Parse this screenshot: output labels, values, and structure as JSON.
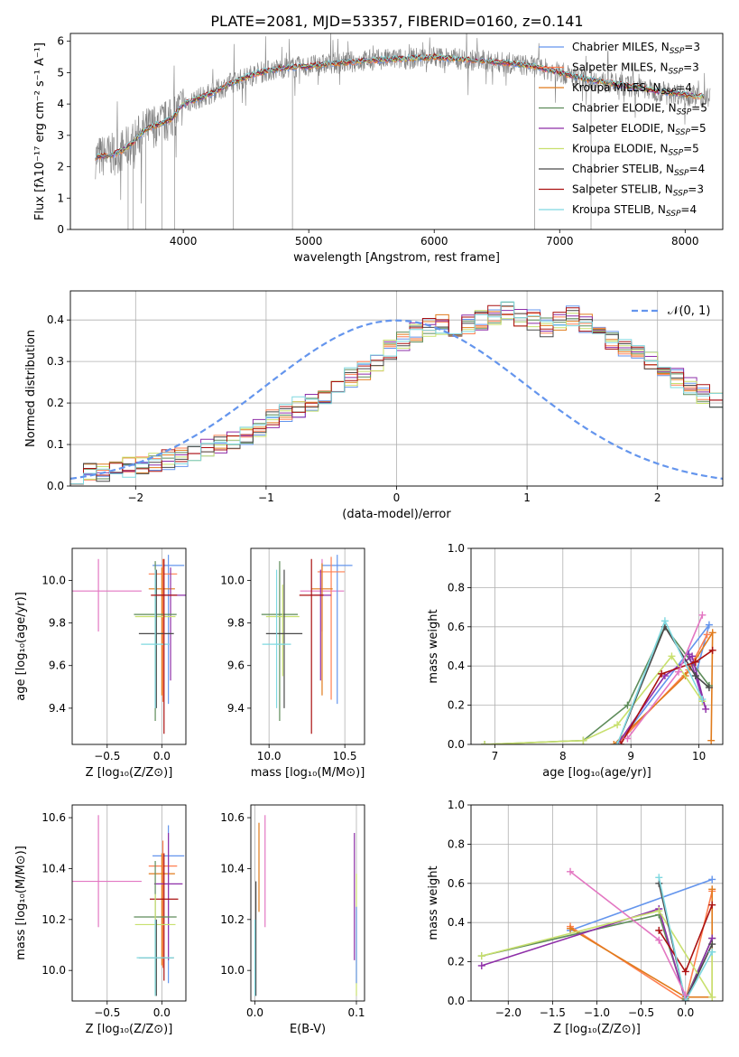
{
  "figure": {
    "title": "PLATE=2081, MJD=53357, FIBERID=0160, z=0.141",
    "colors": {
      "Chabrier MILES": "#6495ed",
      "Salpeter MILES": "#ff7f50",
      "Kroupa MILES": "#e07b1c",
      "Chabrier ELODIE": "#5e8c5a",
      "Salpeter ELODIE": "#8e2fa8",
      "Kroupa ELODIE": "#c8e06e",
      "Chabrier STELIB": "#4a4a4a",
      "Salpeter STELIB": "#aa1111",
      "Kroupa STELIB": "#7fd8e0",
      "pink": "#e377c2",
      "normal": "#6495ed",
      "data": "#808080"
    }
  },
  "chart_data": [
    {
      "id": "spectrum",
      "type": "line",
      "xlabel": "wavelength [Angstrom, rest frame]",
      "ylabel": "Flux [fλ10⁻¹⁷ erg cm⁻² s⁻¹ A⁻¹]",
      "xlim": [
        3100,
        8300
      ],
      "ylim": [
        0,
        6.25
      ],
      "xticks": [
        4000,
        5000,
        6000,
        7000,
        8000
      ],
      "yticks": [
        0,
        1,
        2,
        3,
        4,
        5,
        6
      ],
      "continuum": [
        [
          3300,
          2.3
        ],
        [
          3450,
          2.4
        ],
        [
          3550,
          2.6
        ],
        [
          3700,
          3.2
        ],
        [
          3900,
          3.5
        ],
        [
          4000,
          4.0
        ],
        [
          4200,
          4.3
        ],
        [
          4400,
          4.7
        ],
        [
          4600,
          5.0
        ],
        [
          4800,
          5.15
        ],
        [
          5000,
          5.2
        ],
        [
          5200,
          5.3
        ],
        [
          5500,
          5.4
        ],
        [
          5800,
          5.45
        ],
        [
          6000,
          5.5
        ],
        [
          6300,
          5.4
        ],
        [
          6600,
          5.3
        ],
        [
          6800,
          5.2
        ],
        [
          7000,
          5.0
        ],
        [
          7200,
          4.8
        ],
        [
          7500,
          4.6
        ],
        [
          7800,
          4.4
        ],
        [
          8000,
          4.3
        ],
        [
          8200,
          4.2
        ]
      ],
      "legend": [
        {
          "name": "Chabrier MILES",
          "label": "Chabrier MILES, N",
          "sub": "SSP",
          "suffix": "=3"
        },
        {
          "name": "Salpeter MILES",
          "label": "Salpeter MILES, N",
          "sub": "SSP",
          "suffix": "=3"
        },
        {
          "name": "Kroupa MILES",
          "label": "Kroupa MILES, N",
          "sub": "SSP",
          "suffix": "=4"
        },
        {
          "name": "Chabrier ELODIE",
          "label": "Chabrier ELODIE, N",
          "sub": "SSP",
          "suffix": "=5"
        },
        {
          "name": "Salpeter ELODIE",
          "label": "Salpeter ELODIE, N",
          "sub": "SSP",
          "suffix": "=5"
        },
        {
          "name": "Kroupa ELODIE",
          "label": "Kroupa ELODIE, N",
          "sub": "SSP",
          "suffix": "=5"
        },
        {
          "name": "Chabrier STELIB",
          "label": "Chabrier STELIB, N",
          "sub": "SSP",
          "suffix": "=4"
        },
        {
          "name": "Salpeter STELIB",
          "label": "Salpeter STELIB, N",
          "sub": "SSP",
          "suffix": "=3"
        },
        {
          "name": "Kroupa STELIB",
          "label": "Kroupa STELIB, N",
          "sub": "SSP",
          "suffix": "=4"
        }
      ]
    },
    {
      "id": "residuals",
      "type": "histogram",
      "xlabel": "(data-model)/error",
      "ylabel": "Normed distribution",
      "xlim": [
        -2.5,
        2.5
      ],
      "ylim": [
        0,
        0.47
      ],
      "xticks": [
        -2,
        -1,
        0,
        1,
        2
      ],
      "yticks": [
        0.0,
        0.1,
        0.2,
        0.3,
        0.4
      ],
      "grid": true,
      "bin_width": 0.1,
      "bin_start": -2.5,
      "envelope": [
        0.03,
        0.032,
        0.035,
        0.04,
        0.045,
        0.05,
        0.056,
        0.063,
        0.07,
        0.08,
        0.09,
        0.1,
        0.11,
        0.12,
        0.14,
        0.16,
        0.18,
        0.19,
        0.2,
        0.22,
        0.24,
        0.26,
        0.28,
        0.3,
        0.33,
        0.35,
        0.37,
        0.38,
        0.39,
        0.38,
        0.39,
        0.4,
        0.41,
        0.42,
        0.41,
        0.4,
        0.38,
        0.4,
        0.41,
        0.39,
        0.37,
        0.35,
        0.33,
        0.32,
        0.3,
        0.28,
        0.26,
        0.24,
        0.22,
        0.2,
        0.18,
        0.16,
        0.15,
        0.13,
        0.12,
        0.1,
        0.09,
        0.08,
        0.07,
        0.06,
        0.05,
        0.045,
        0.04,
        0.035,
        0.03,
        0.025,
        0.022,
        0.02,
        0.02,
        0.018,
        0.018,
        0.018,
        0.016,
        0.016,
        0.015,
        0.015,
        0.015,
        0.015,
        0.015,
        0.015
      ],
      "legend": "𝒩(0, 1)"
    },
    {
      "id": "age-vs-Z",
      "type": "errorbar",
      "xlabel": "Z [log₁₀(Z/Z⊙)]",
      "ylabel": "age  [log₁₀(age/yr)]",
      "xlim": [
        -0.82,
        0.22
      ],
      "ylim": [
        9.23,
        10.15
      ],
      "xticks": [
        -0.5,
        0.0
      ],
      "yticks": [
        9.4,
        9.6,
        9.8,
        10.0
      ],
      "points": [
        {
          "s": "pink",
          "x": -0.58,
          "y": 9.95,
          "xe": 0.75,
          "ye": [
            0.19,
            0.15
          ]
        },
        {
          "s": "Chabrier MILES",
          "x": 0.06,
          "y": 10.07,
          "xe": 0.25,
          "ye": [
            0.65,
            0.05
          ]
        },
        {
          "s": "Salpeter MILES",
          "x": 0.01,
          "y": 10.03,
          "xe": 0.22,
          "ye": [
            0.6,
            0.07
          ]
        },
        {
          "s": "Kroupa MILES",
          "x": 0.0,
          "y": 9.96,
          "xe": 0.2,
          "ye": [
            0.5,
            0.1
          ]
        },
        {
          "s": "Salpeter ELODIE",
          "x": 0.08,
          "y": 9.93,
          "xe": 0.25,
          "ye": [
            0.4,
            0.13
          ]
        },
        {
          "s": "Chabrier ELODIE",
          "x": -0.06,
          "y": 9.84,
          "xe": 0.35,
          "ye": [
            0.5,
            0.25
          ]
        },
        {
          "s": "Kroupa ELODIE",
          "x": -0.06,
          "y": 9.83,
          "xe": 0.33,
          "ye": [
            0.28,
            0.15
          ]
        },
        {
          "s": "Chabrier STELIB",
          "x": -0.05,
          "y": 9.75,
          "xe": 0.28,
          "ye": [
            0.35,
            0.3
          ]
        },
        {
          "s": "Kroupa STELIB",
          "x": -0.06,
          "y": 9.7,
          "xe": 0.22,
          "ye": [
            0.3,
            0.35
          ]
        },
        {
          "s": "Salpeter STELIB",
          "x": 0.02,
          "y": 9.93,
          "xe": 0.2,
          "ye": [
            0.65,
            0.17
          ]
        }
      ]
    },
    {
      "id": "age-vs-mass",
      "type": "errorbar",
      "xlabel": "mass [log₁₀(M/M⊙)]",
      "ylabel": "",
      "xlim": [
        9.88,
        10.63
      ],
      "ylim": [
        9.23,
        10.15
      ],
      "xticks": [
        10.0,
        10.5
      ],
      "yticks": [
        9.4,
        9.6,
        9.8,
        10.0
      ],
      "points": [
        {
          "s": "pink",
          "x": 10.35,
          "y": 9.95,
          "xe": 0.25,
          "ye": [
            0.19,
            0.15
          ]
        },
        {
          "s": "Chabrier MILES",
          "x": 10.45,
          "y": 10.07,
          "xe": 0.16,
          "ye": [
            0.65,
            0.05
          ]
        },
        {
          "s": "Salpeter MILES",
          "x": 10.41,
          "y": 10.04,
          "xe": 0.14,
          "ye": [
            0.6,
            0.07
          ]
        },
        {
          "s": "Kroupa MILES",
          "x": 10.35,
          "y": 9.96,
          "xe": 0.1,
          "ye": [
            0.5,
            0.12
          ]
        },
        {
          "s": "Salpeter ELODIE",
          "x": 10.34,
          "y": 9.93,
          "xe": 0.1,
          "ye": [
            0.4,
            0.12
          ]
        },
        {
          "s": "Chabrier ELODIE",
          "x": 10.07,
          "y": 9.84,
          "xe": 0.2,
          "ye": [
            0.5,
            0.25
          ]
        },
        {
          "s": "Kroupa ELODIE",
          "x": 10.09,
          "y": 9.83,
          "xe": 0.18,
          "ye": [
            0.28,
            0.15
          ]
        },
        {
          "s": "Chabrier STELIB",
          "x": 10.1,
          "y": 9.75,
          "xe": 0.2,
          "ye": [
            0.35,
            0.3
          ]
        },
        {
          "s": "Kroupa STELIB",
          "x": 10.05,
          "y": 9.7,
          "xe": 0.15,
          "ye": [
            0.3,
            0.35
          ]
        },
        {
          "s": "Salpeter STELIB",
          "x": 10.28,
          "y": 9.93,
          "xe": 0.12,
          "ye": [
            0.65,
            0.17
          ]
        }
      ]
    },
    {
      "id": "weight-vs-age",
      "type": "line",
      "xlabel": "age  [log₁₀(age/yr)]",
      "ylabel": "mass weight",
      "xlim": [
        6.65,
        10.35
      ],
      "ylim": [
        0,
        1.0
      ],
      "xticks": [
        7,
        8,
        9,
        10
      ],
      "yticks": [
        0.0,
        0.2,
        0.4,
        0.6,
        0.8,
        1.0
      ],
      "grid": true,
      "series": [
        {
          "s": "Chabrier MILES",
          "x": [
            8.8,
            10.15,
            9.95
          ],
          "y": [
            0.0,
            0.61,
            0.35
          ]
        },
        {
          "s": "Salpeter MILES",
          "x": [
            8.8,
            9.85,
            10.12
          ],
          "y": [
            0.0,
            0.38,
            0.56
          ]
        },
        {
          "s": "Kroupa MILES",
          "x": [
            8.75,
            9.8,
            10.2,
            10.18
          ],
          "y": [
            0.0,
            0.35,
            0.57,
            0.02
          ]
        },
        {
          "s": "Chabrier ELODIE",
          "x": [
            6.85,
            8.3,
            8.95,
            9.5,
            10.15
          ],
          "y": [
            0.0,
            0.02,
            0.2,
            0.6,
            0.3
          ]
        },
        {
          "s": "Salpeter ELODIE",
          "x": [
            8.8,
            9.5,
            9.9,
            10.1,
            9.85
          ],
          "y": [
            0.0,
            0.35,
            0.45,
            0.18,
            0.46
          ]
        },
        {
          "s": "Kroupa ELODIE",
          "x": [
            6.85,
            8.3,
            8.8,
            9.6,
            10.05
          ],
          "y": [
            0.0,
            0.02,
            0.1,
            0.45,
            0.22
          ]
        },
        {
          "s": "Chabrier STELIB",
          "x": [
            8.8,
            9.5,
            9.95,
            10.15
          ],
          "y": [
            0.0,
            0.6,
            0.35,
            0.29
          ]
        },
        {
          "s": "Salpeter STELIB",
          "x": [
            8.85,
            9.45,
            9.95,
            10.2
          ],
          "y": [
            0.0,
            0.36,
            0.42,
            0.48
          ]
        },
        {
          "s": "Kroupa STELIB",
          "x": [
            8.8,
            9.5,
            10.05
          ],
          "y": [
            0.0,
            0.63,
            0.23
          ]
        },
        {
          "s": "pink",
          "x": [
            8.95,
            9.7,
            10.05
          ],
          "y": [
            0.03,
            0.37,
            0.66
          ]
        }
      ]
    },
    {
      "id": "mass-vs-Z",
      "type": "errorbar",
      "xlabel": "Z [log₁₀(Z/Z⊙)]",
      "ylabel": "mass [log₁₀(M/M⊙)]",
      "xlim": [
        -0.82,
        0.22
      ],
      "ylim": [
        9.88,
        10.65
      ],
      "xticks": [
        -0.5,
        0.0
      ],
      "yticks": [
        10.0,
        10.2,
        10.4,
        10.6
      ],
      "points": [
        {
          "s": "pink",
          "x": -0.58,
          "y": 10.35,
          "xe": 0.75,
          "ye": [
            0.18,
            0.26
          ]
        },
        {
          "s": "Chabrier MILES",
          "x": 0.06,
          "y": 10.45,
          "xe": 0.25,
          "ye": [
            0.5,
            0.12
          ]
        },
        {
          "s": "Salpeter MILES",
          "x": 0.01,
          "y": 10.41,
          "xe": 0.22,
          "ye": [
            0.4,
            0.1
          ]
        },
        {
          "s": "Kroupa MILES",
          "x": 0.0,
          "y": 10.38,
          "xe": 0.2,
          "ye": [
            0.36,
            0.08
          ]
        },
        {
          "s": "Salpeter ELODIE",
          "x": 0.06,
          "y": 10.34,
          "xe": 0.22,
          "ye": [
            0.3,
            0.2
          ]
        },
        {
          "s": "Salpeter STELIB",
          "x": 0.02,
          "y": 10.28,
          "xe": 0.22,
          "ye": [
            0.32,
            0.18
          ]
        },
        {
          "s": "Chabrier ELODIE",
          "x": -0.06,
          "y": 10.21,
          "xe": 0.35,
          "ye": [
            0.3,
            0.22
          ]
        },
        {
          "s": "Kroupa ELODIE",
          "x": -0.06,
          "y": 10.18,
          "xe": 0.33,
          "ye": [
            0.28,
            0.12
          ]
        },
        {
          "s": "Chabrier STELIB",
          "x": -0.05,
          "y": 10.05,
          "xe": 0.28,
          "ye": [
            0.15,
            0.15
          ]
        },
        {
          "s": "Kroupa STELIB",
          "x": -0.06,
          "y": 10.05,
          "xe": 0.3,
          "ye": [
            0.15,
            0.15
          ]
        }
      ]
    },
    {
      "id": "mass-vs-ebv",
      "type": "errorbar",
      "xlabel": "E(B-V)",
      "ylabel": "",
      "xlim": [
        -0.004,
        0.108
      ],
      "ylim": [
        9.88,
        10.65
      ],
      "xticks": [
        0.0,
        0.1
      ],
      "yticks": [
        10.0,
        10.2,
        10.4,
        10.6
      ],
      "points": [
        {
          "s": "Kroupa MILES",
          "x": 0.004,
          "y": 10.41,
          "xe": 0,
          "ye": [
            0.18,
            0.17
          ]
        },
        {
          "s": "pink",
          "x": 0.01,
          "y": 10.35,
          "xe": 0,
          "ye": [
            0.18,
            0.26
          ]
        },
        {
          "s": "Chabrier STELIB",
          "x": 0.001,
          "y": 10.25,
          "xe": 0,
          "ye": [
            0.35,
            0.1
          ]
        },
        {
          "s": "Kroupa STELIB",
          "x": 0.0,
          "y": 10.05,
          "xe": 0,
          "ye": [
            0.15,
            0.15
          ]
        },
        {
          "s": "Salpeter ELODIE",
          "x": 0.098,
          "y": 10.34,
          "xe": 0,
          "ye": [
            0.3,
            0.2
          ]
        },
        {
          "s": "Kroupa ELODIE",
          "x": 0.1,
          "y": 10.18,
          "xe": 0,
          "ye": [
            0.28,
            0.2
          ]
        },
        {
          "s": "Chabrier MILES",
          "x": 0.1,
          "y": 10.05,
          "xe": 0,
          "ye": [
            0.1,
            0.2
          ]
        }
      ]
    },
    {
      "id": "weight-vs-Z",
      "type": "line",
      "xlabel": "Z [log₁₀(Z/Z⊙)]",
      "ylabel": "mass weight",
      "xlim": [
        -2.42,
        0.42
      ],
      "ylim": [
        0,
        1.0
      ],
      "xticks": [
        -2.0,
        -1.5,
        -1.0,
        -0.5,
        0.0
      ],
      "yticks": [
        0.0,
        0.2,
        0.4,
        0.6,
        0.8,
        1.0
      ],
      "grid": true,
      "series": [
        {
          "s": "Chabrier MILES",
          "x": [
            -1.3,
            0.3
          ],
          "y": [
            0.36,
            0.62
          ]
        },
        {
          "s": "Salpeter MILES",
          "x": [
            -1.3,
            0.0,
            0.3
          ],
          "y": [
            0.38,
            0.0,
            0.56
          ]
        },
        {
          "s": "Kroupa MILES",
          "x": [
            -1.3,
            0.0,
            0.3,
            0.3
          ],
          "y": [
            0.37,
            0.02,
            0.02,
            0.57
          ]
        },
        {
          "s": "Chabrier ELODIE",
          "x": [
            -2.3,
            -0.3,
            0.0,
            0.3
          ],
          "y": [
            0.23,
            0.44,
            0.01,
            0.32
          ]
        },
        {
          "s": "Salpeter ELODIE",
          "x": [
            -2.3,
            -0.3,
            0.0,
            0.3
          ],
          "y": [
            0.18,
            0.47,
            0.0,
            0.32
          ]
        },
        {
          "s": "Kroupa ELODIE",
          "x": [
            -2.3,
            -0.3,
            0.3,
            0.3
          ],
          "y": [
            0.23,
            0.46,
            0.02,
            0.25
          ]
        },
        {
          "s": "Chabrier STELIB",
          "x": [
            -0.3,
            0.0,
            0.3
          ],
          "y": [
            0.6,
            0.0,
            0.29
          ]
        },
        {
          "s": "Salpeter STELIB",
          "x": [
            -0.3,
            0.0,
            0.3
          ],
          "y": [
            0.36,
            0.15,
            0.49
          ]
        },
        {
          "s": "Kroupa STELIB",
          "x": [
            -0.3,
            0.0,
            0.3
          ],
          "y": [
            0.63,
            0.0,
            0.25
          ]
        },
        {
          "s": "pink",
          "x": [
            -1.3,
            -0.3,
            0.0
          ],
          "y": [
            0.66,
            0.31,
            0.03
          ]
        }
      ]
    }
  ]
}
